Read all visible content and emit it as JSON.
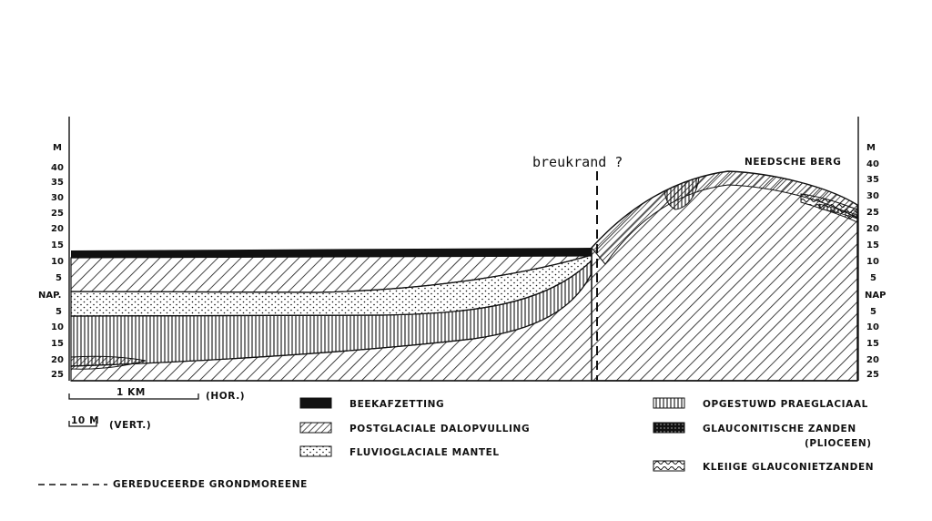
{
  "left_axis": {
    "unit": "M",
    "above": [
      "40",
      "35",
      "30",
      "25",
      "20",
      "15",
      "10",
      "5"
    ],
    "datum": "NAP.",
    "below": [
      "5",
      "10",
      "15",
      "20",
      "25"
    ]
  },
  "right_axis": {
    "unit": "M",
    "above": [
      "40",
      "35",
      "30",
      "25",
      "20",
      "15",
      "10",
      "5"
    ],
    "datum": "NAP",
    "below": [
      "5",
      "10",
      "15",
      "20",
      "25"
    ]
  },
  "annotations": {
    "fault": "breukrand ?",
    "hill": "NEEDSCHE BERG"
  },
  "scales": {
    "horizontal": "1 KM",
    "horizontal_note": "(HOR.)",
    "vertical": "10 M",
    "vertical_note": "(VERT.)"
  },
  "legend": {
    "items": [
      {
        "label": "BEEKAFZETTING",
        "fill": "black"
      },
      {
        "label": "POSTGLACIALE DALOPVULLING",
        "fill": "dense-hatch"
      },
      {
        "label": "FLUVIOGLACIALE MANTEL",
        "fill": "dots"
      },
      {
        "label": "OPGESTUWD PRAEGLACIAAL",
        "fill": "vertical-lines"
      },
      {
        "label": "GLAUCONITISCHE ZANDEN",
        "sub": "(PLIOCEEN)",
        "fill": "black-dotted"
      },
      {
        "label": "KLEIIGE GLAUCONIETZANDEN",
        "fill": "wavy-hatch"
      }
    ],
    "dashed_line_label": "GEREDUCEERDE GRONDMOREENE"
  }
}
